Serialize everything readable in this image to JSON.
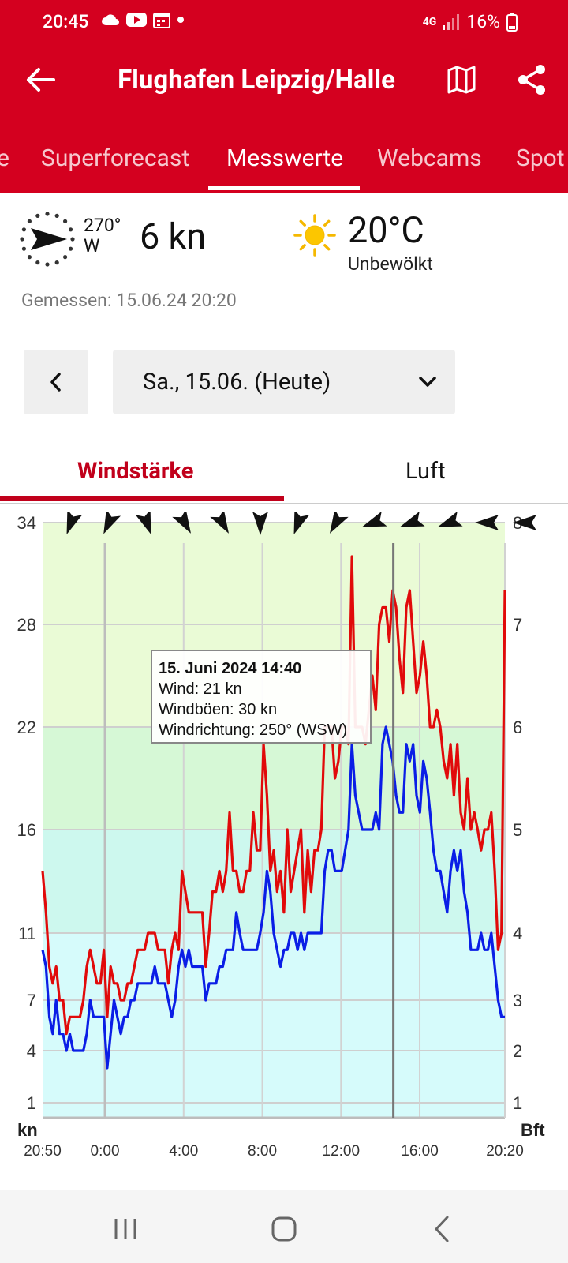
{
  "status_bar": {
    "time": "20:45",
    "network": "4G",
    "battery": "16%",
    "notification_icons": [
      "cloud-icon",
      "youtube-icon",
      "calendar-icon",
      "dot-icon"
    ]
  },
  "header": {
    "title": "Flughafen Leipzig/Halle",
    "tabs": [
      {
        "label": "e"
      },
      {
        "label": "Superforecast"
      },
      {
        "label": "Messwerte"
      },
      {
        "label": "Webcams"
      },
      {
        "label": "Spot"
      }
    ],
    "active_tab": "Messwerte",
    "brand_color": "#d4001f"
  },
  "current": {
    "direction_deg": "270°",
    "direction_cardinal": "W",
    "wind_speed": "6 kn",
    "temperature": "20°C",
    "condition": "Unbewölkt",
    "measured": "Gemessen: 15.06.24 20:20"
  },
  "date_selector": {
    "selected": "Sa., 15.06. (Heute)"
  },
  "subtabs": {
    "active": "Windstärke",
    "inactive": "Luft"
  },
  "chart_data": {
    "type": "line",
    "x_tick_labels": [
      "20:50",
      "0:00",
      "4:00",
      "8:00",
      "12:00",
      "16:00",
      "20:20"
    ],
    "x_tick_hours": [
      0,
      3.17,
      7.17,
      11.17,
      15.17,
      19.17,
      23.5
    ],
    "y_left_label": "kn",
    "y_left_ticks": [
      1,
      4,
      7,
      11,
      16,
      22,
      28,
      34
    ],
    "y_right_label": "Bft",
    "y_right_ticks": [
      1,
      2,
      3,
      4,
      5,
      6,
      7,
      8
    ],
    "x_range_hours": [
      0,
      23.5
    ],
    "direction_arrows_deg": [
      200,
      205,
      160,
      150,
      150,
      180,
      200,
      210,
      250,
      250,
      250,
      270,
      270
    ],
    "cursor_hour": 17.83,
    "tooltip": {
      "title": "15. Juni 2024 14:40",
      "lines": [
        "Wind: 21 kn",
        "Windböen: 30 kn",
        "Windrichtung: 250° (WSW)"
      ]
    },
    "series": [
      {
        "name": "Windböen",
        "color": "#e10a0a",
        "values": [
          14,
          12,
          9,
          8,
          9,
          7,
          7,
          5,
          6,
          6,
          6,
          6,
          7,
          9,
          10,
          9,
          8,
          8,
          10,
          6,
          9,
          8,
          8,
          7,
          7,
          8,
          8,
          9,
          10,
          10,
          10,
          11,
          11,
          11,
          10,
          10,
          10,
          8,
          10,
          11,
          10,
          14,
          13,
          12,
          12,
          12,
          12,
          12,
          9,
          11,
          13,
          13,
          14,
          13,
          14,
          17,
          14,
          14,
          13,
          13,
          14,
          14,
          17,
          15,
          15,
          21,
          18,
          14,
          15,
          13,
          14,
          12,
          16,
          13,
          14,
          15,
          16,
          12,
          15,
          13,
          15,
          15,
          16,
          22,
          22,
          22,
          19,
          20,
          22,
          22,
          21,
          32,
          22,
          22,
          22,
          21,
          23,
          25,
          23,
          28,
          29,
          29,
          27,
          30,
          29,
          26,
          24,
          29,
          30,
          27,
          24,
          25,
          27,
          25,
          22,
          22,
          23,
          22,
          20,
          19,
          21,
          18,
          21,
          17,
          16,
          19,
          16,
          17,
          16,
          15,
          16,
          16,
          17,
          14,
          10,
          11,
          30
        ],
        "y_start_hour": 0,
        "y_step_hours": 0.1739
      },
      {
        "name": "Wind",
        "color": "#0a1ee6",
        "values": [
          10,
          9,
          6,
          5,
          7,
          5,
          5,
          4,
          5,
          4,
          4,
          4,
          4,
          5,
          7,
          6,
          6,
          6,
          6,
          3,
          5,
          7,
          6,
          5,
          6,
          6,
          7,
          7,
          8,
          8,
          8,
          8,
          8,
          9,
          8,
          8,
          8,
          7,
          6,
          7,
          9,
          10,
          9,
          10,
          9,
          9,
          9,
          9,
          7,
          8,
          8,
          8,
          9,
          9,
          10,
          10,
          10,
          12,
          11,
          10,
          10,
          10,
          10,
          10,
          11,
          12,
          14,
          13,
          11,
          10,
          9,
          10,
          10,
          11,
          11,
          10,
          11,
          10,
          11,
          11,
          11,
          11,
          11,
          14,
          15,
          15,
          14,
          14,
          14,
          15,
          16,
          21,
          18,
          17,
          16,
          16,
          16,
          16,
          17,
          16,
          21,
          22,
          21,
          20,
          18,
          17,
          17,
          21,
          20,
          21,
          18,
          17,
          20,
          19,
          17,
          15,
          14,
          14,
          13,
          12,
          14,
          15,
          14,
          15,
          13,
          12,
          10,
          10,
          10,
          11,
          10,
          10,
          11,
          9,
          7,
          6,
          6
        ],
        "y_start_hour": 0,
        "y_step_hours": 0.1739
      }
    ],
    "bands_kn": [
      {
        "from": 0,
        "to": 11,
        "color": "#d6fbfb"
      },
      {
        "from": 11,
        "to": 16,
        "color": "#cdf8ee"
      },
      {
        "from": 16,
        "to": 22,
        "color": "#d6f8d6"
      },
      {
        "from": 22,
        "to": 34,
        "color": "#eafbd6"
      }
    ]
  },
  "nav": {
    "recents": "recents-icon",
    "home": "home-icon",
    "back": "back-nav-icon"
  }
}
